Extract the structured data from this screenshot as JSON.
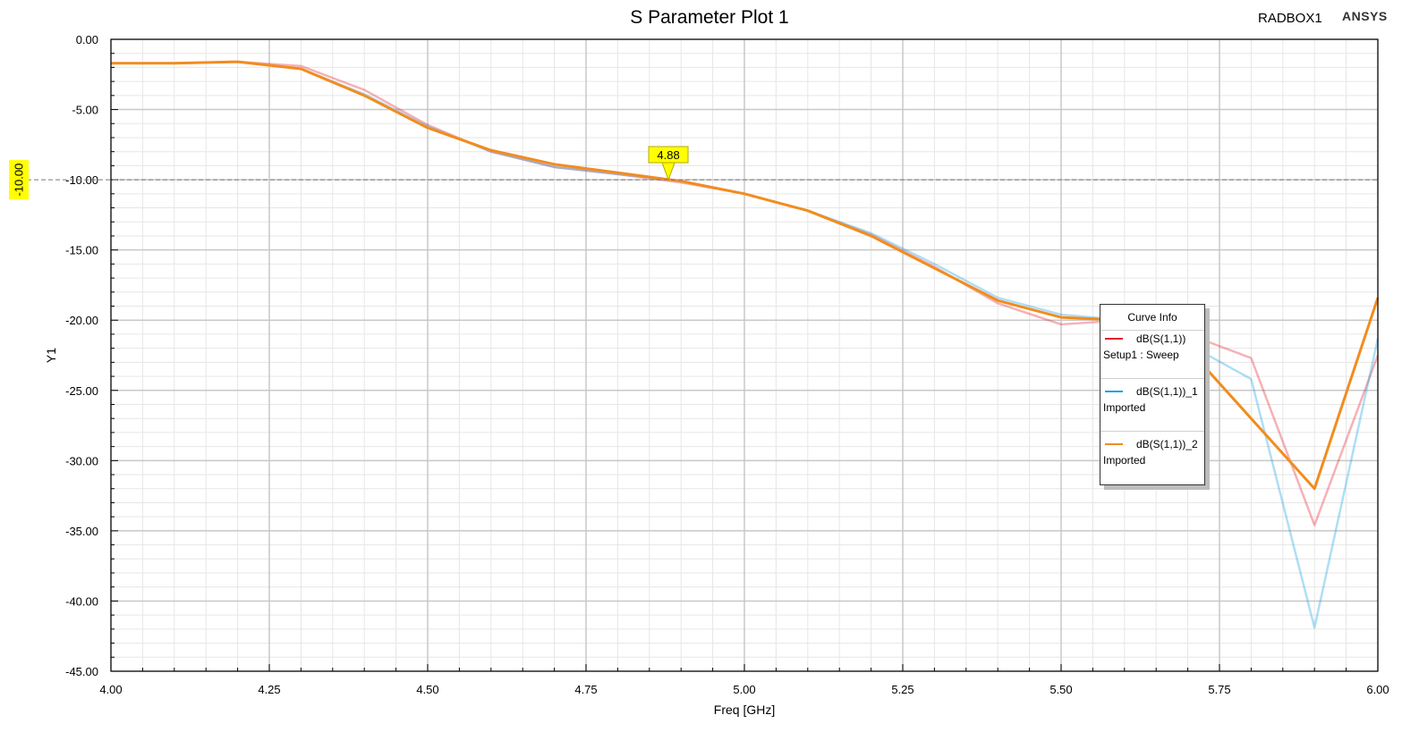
{
  "header": {
    "title": "S Parameter Plot 1",
    "design_name": "RADBOX1",
    "brand": "ANSYS"
  },
  "legend": {
    "title": "Curve Info",
    "entries": [
      {
        "name": "dB(S(1,1))",
        "source": "Setup1 : Sweep",
        "color": "#e5202e"
      },
      {
        "name": "dB(S(1,1))_1",
        "source": "Imported",
        "color": "#1ba1e2"
      },
      {
        "name": "dB(S(1,1))_2",
        "source": "Imported",
        "color": "#f28c1e"
      }
    ]
  },
  "markers": {
    "vertical_label": "4.88",
    "horizontal_label": "-10.00"
  },
  "colors": {
    "marker_fill": "#ffff00",
    "grid_major": "#c8c8c8",
    "grid_minor": "#e6e6e6",
    "frame": "#000000"
  },
  "chart_data": {
    "type": "line",
    "title": "S Parameter Plot 1",
    "xlabel": "Freq [GHz]",
    "ylabel": "Y1",
    "xlim": [
      4.0,
      6.0
    ],
    "ylim": [
      -45.0,
      0.0
    ],
    "xticks": [
      "4.00",
      "4.25",
      "4.50",
      "4.75",
      "5.00",
      "5.25",
      "5.50",
      "5.75",
      "6.00"
    ],
    "yticks": [
      "0.00",
      "-5.00",
      "-10.00",
      "-15.00",
      "-20.00",
      "-25.00",
      "-30.00",
      "-35.00",
      "-40.00",
      "-45.00"
    ],
    "grid": true,
    "legend_position": "right",
    "marker_x": 4.88,
    "marker_y": -10.0,
    "x": [
      4.0,
      4.1,
      4.2,
      4.3,
      4.4,
      4.5,
      4.6,
      4.7,
      4.8,
      4.9,
      5.0,
      5.1,
      5.2,
      5.3,
      5.4,
      5.5,
      5.6,
      5.7,
      5.8,
      5.9,
      6.0
    ],
    "series": [
      {
        "name": "dB(S(1,1))",
        "color": "#e5202e",
        "opacity": 0.35,
        "values": [
          -1.7,
          -1.7,
          -1.6,
          -1.9,
          -3.6,
          -6.1,
          -8.0,
          -9.1,
          -9.6,
          -10.2,
          -11.0,
          -12.2,
          -13.9,
          -16.2,
          -18.8,
          -20.3,
          -20.0,
          -21.0,
          -22.7,
          -34.6,
          -22.5
        ]
      },
      {
        "name": "dB(S(1,1))_1",
        "color": "#1ba1e2",
        "opacity": 0.35,
        "values": [
          -1.7,
          -1.7,
          -1.6,
          -2.1,
          -3.9,
          -6.2,
          -8.0,
          -9.1,
          -9.6,
          -10.1,
          -11.0,
          -12.2,
          -13.8,
          -16.0,
          -18.4,
          -19.6,
          -20.0,
          -21.7,
          -24.2,
          -41.9,
          -21.3
        ]
      },
      {
        "name": "dB(S(1,1))_2",
        "color": "#f28c1e",
        "opacity": 1.0,
        "values": [
          -1.7,
          -1.7,
          -1.6,
          -2.1,
          -4.0,
          -6.3,
          -7.9,
          -8.9,
          -9.5,
          -10.1,
          -11.0,
          -12.2,
          -14.0,
          -16.3,
          -18.6,
          -19.8,
          -20.0,
          -22.0,
          -27.0,
          -32.0,
          -18.4
        ]
      }
    ]
  }
}
